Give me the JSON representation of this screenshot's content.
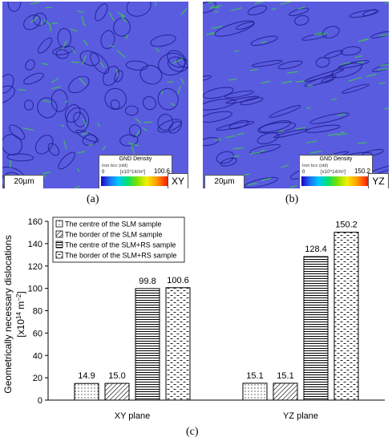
{
  "panels": {
    "a": {
      "label": "(a)",
      "scale_bar": "20µm",
      "plane": "XY",
      "legend": {
        "title": "GND Density",
        "phase": "Iron bcc (old)",
        "min": "0",
        "unit": "[x10^14/m²]",
        "max": "100.6"
      }
    },
    "b": {
      "label": "(b)",
      "scale_bar": "20µm",
      "plane": "YZ",
      "legend": {
        "title": "GND Density",
        "phase": "Iron bcc (old)",
        "min": "0",
        "unit": "[x10^14/m²]",
        "max": "150.2"
      }
    },
    "c": {
      "label": "(c)"
    }
  },
  "colors": {
    "map_background": "#5a5ce0",
    "map_boundaries": "#1c1c8c",
    "map_highlights": "#3fd23f"
  },
  "chart_data": {
    "type": "bar",
    "categories": [
      "XY plane",
      "YZ plane"
    ],
    "series": [
      {
        "name": "The centre of the SLM sample",
        "pattern": "dots",
        "values": [
          14.9,
          15.1
        ],
        "labels": [
          "14.9",
          "15.1"
        ]
      },
      {
        "name": "The border of the SLM sample",
        "pattern": "diagonal",
        "values": [
          15.0,
          15.1
        ],
        "labels": [
          "15.0",
          "15.1"
        ]
      },
      {
        "name": "The centre of the SLM+RS sample",
        "pattern": "horizontal",
        "values": [
          99.8,
          128.4
        ],
        "labels": [
          "99.8",
          "128.4"
        ]
      },
      {
        "name": "The border of the SLM+RS sample",
        "pattern": "dashes",
        "values": [
          100.6,
          150.2
        ],
        "labels": [
          "100.6",
          "150.2"
        ]
      }
    ],
    "ylabel_line1": "Geometrically necessary dislocations",
    "ylabel_line2": "[x10",
    "ylabel_sup1": "14",
    "ylabel_mid": " m",
    "ylabel_sup2": "−2",
    "ylabel_end": "]",
    "ylim": [
      0,
      160
    ],
    "yticks": [
      "0",
      "20",
      "40",
      "60",
      "80",
      "100",
      "120",
      "140",
      "160"
    ],
    "grid": false,
    "legend_position": "top-left"
  }
}
